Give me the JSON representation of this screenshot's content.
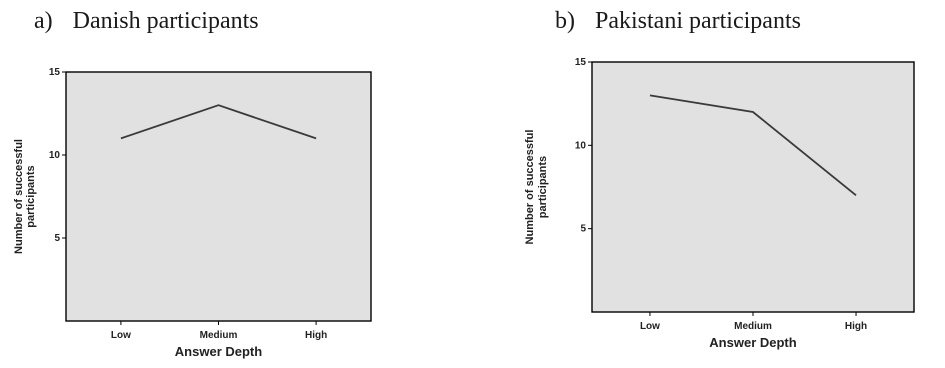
{
  "panels": [
    {
      "letter": "a)",
      "caption": "Danish participants"
    },
    {
      "letter": "b)",
      "caption": "Pakistani participants"
    }
  ],
  "chart_data": [
    {
      "type": "line",
      "title": "Danish participants",
      "categories": [
        "Low",
        "Medium",
        "High"
      ],
      "series": [
        {
          "values": [
            11,
            13,
            11
          ]
        }
      ],
      "xlabel": "Answer Depth",
      "ylabel": [
        "Number of successful",
        "participants"
      ],
      "yticks": [
        5,
        10,
        15
      ],
      "ylim": [
        0,
        15
      ],
      "grid": false,
      "colors": {
        "line": "#3a3a3a",
        "plot_background": "#e1e1e1"
      }
    },
    {
      "type": "line",
      "title": "Pakistani participants",
      "categories": [
        "Low",
        "Medium",
        "High"
      ],
      "series": [
        {
          "values": [
            13,
            12,
            7
          ]
        }
      ],
      "xlabel": "Answer Depth",
      "ylabel": [
        "Number of successful",
        "participants"
      ],
      "yticks": [
        5,
        10,
        15
      ],
      "ylim": [
        0,
        15
      ],
      "grid": false,
      "colors": {
        "line": "#3a3a3a",
        "plot_background": "#e1e1e1"
      }
    }
  ]
}
